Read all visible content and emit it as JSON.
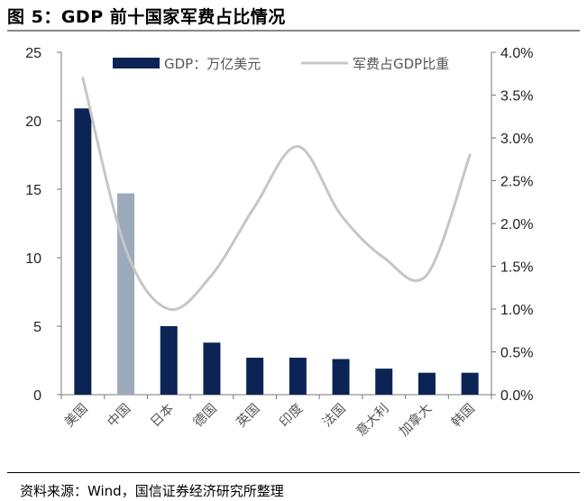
{
  "title": "图 5：GDP 前十国家军费占比情况",
  "source": "资料来源：Wind，国信证券经济研究所整理",
  "colors": {
    "gdp_bar": "#0b2455",
    "gdp_bar_highlight": "#9caabb",
    "line": "#c6c6c6"
  },
  "chart_data": {
    "type": "bar",
    "categories": [
      "美国",
      "中国",
      "日本",
      "德国",
      "英国",
      "印度",
      "法国",
      "意大利",
      "加拿大",
      "韩国"
    ],
    "series": [
      {
        "name": "GDP：万亿美元",
        "type": "bar",
        "axis": "left",
        "values": [
          20.9,
          14.7,
          5.0,
          3.8,
          2.7,
          2.7,
          2.6,
          1.9,
          1.6,
          1.6
        ]
      },
      {
        "name": "军费占GDP比重",
        "type": "line",
        "axis": "right",
        "values": [
          3.7,
          1.7,
          1.0,
          1.4,
          2.2,
          2.9,
          2.1,
          1.6,
          1.4,
          2.8
        ]
      }
    ],
    "highlight_category": "中国",
    "left_axis": {
      "ylim": [
        0,
        25
      ],
      "ticks": [
        "0",
        "5",
        "10",
        "15",
        "20",
        "25"
      ]
    },
    "right_axis": {
      "ylim": [
        0,
        4.0
      ],
      "ticks": [
        "0.0%",
        "0.5%",
        "1.0%",
        "1.5%",
        "2.0%",
        "2.5%",
        "3.0%",
        "3.5%",
        "4.0%"
      ]
    },
    "legend_position": "top",
    "grid": false
  }
}
